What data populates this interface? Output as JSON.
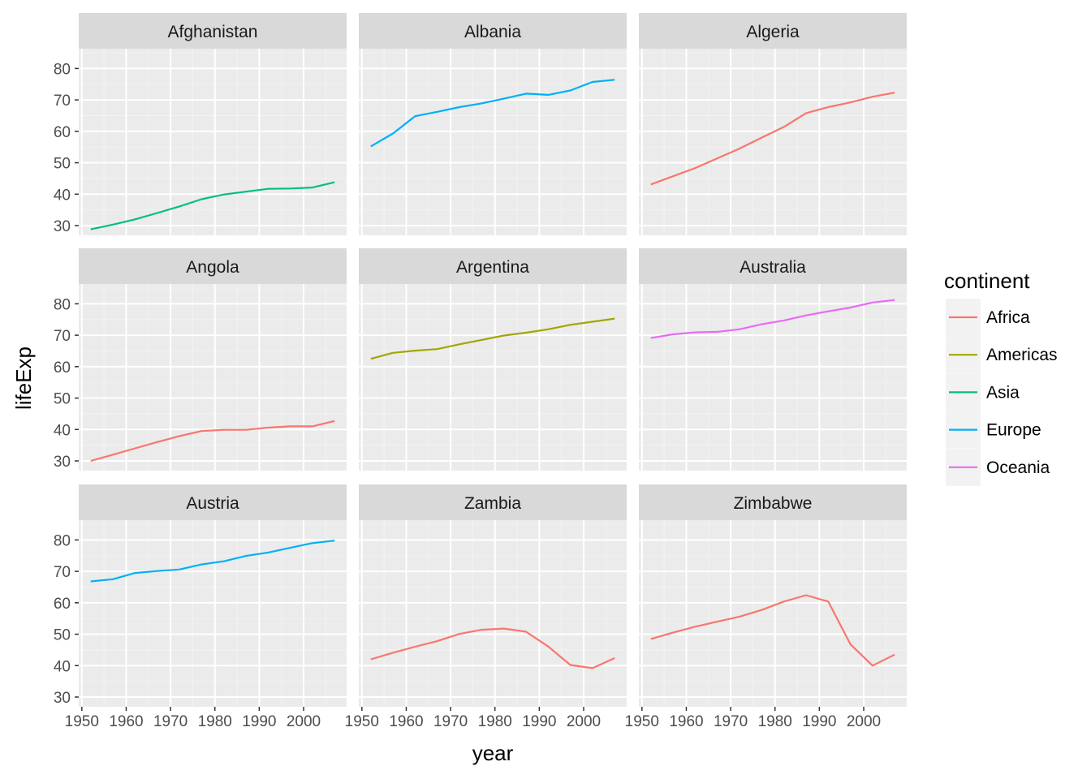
{
  "chart_data": {
    "type": "line",
    "xlabel": "year",
    "ylabel": "lifeExp",
    "xlim": [
      1949.3,
      2009.7
    ],
    "ylim": [
      26.9,
      86.3
    ],
    "x_ticks": [
      1950,
      1960,
      1970,
      1980,
      1990,
      2000
    ],
    "y_ticks": [
      30,
      40,
      50,
      60,
      70,
      80
    ],
    "x": [
      1952,
      1957,
      1962,
      1967,
      1972,
      1977,
      1982,
      1987,
      1992,
      1997,
      2002,
      2007
    ],
    "grid": true,
    "legend": {
      "title": "continent",
      "placement": "right",
      "entries": [
        {
          "name": "Africa",
          "color": "#F8766D"
        },
        {
          "name": "Americas",
          "color": "#A3A500"
        },
        {
          "name": "Asia",
          "color": "#00BF7D"
        },
        {
          "name": "Europe",
          "color": "#00B0F6"
        },
        {
          "name": "Oceania",
          "color": "#E76BF3"
        }
      ]
    },
    "series": [
      {
        "name": "Afghanistan",
        "continent": "Asia",
        "values": [
          28.8,
          30.3,
          32.0,
          34.0,
          36.1,
          38.4,
          39.9,
          40.8,
          41.7,
          41.8,
          42.1,
          43.8
        ]
      },
      {
        "name": "Albania",
        "continent": "Europe",
        "values": [
          55.2,
          59.3,
          64.8,
          66.2,
          67.7,
          68.9,
          70.4,
          72.0,
          71.6,
          73.0,
          75.7,
          76.4
        ]
      },
      {
        "name": "Algeria",
        "continent": "Africa",
        "values": [
          43.1,
          45.7,
          48.3,
          51.4,
          54.5,
          58.0,
          61.4,
          65.8,
          67.7,
          69.2,
          71.0,
          72.3
        ]
      },
      {
        "name": "Angola",
        "continent": "Africa",
        "values": [
          30.0,
          32.0,
          34.0,
          36.0,
          37.9,
          39.5,
          39.9,
          39.9,
          40.6,
          41.0,
          41.0,
          42.7
        ]
      },
      {
        "name": "Argentina",
        "continent": "Americas",
        "values": [
          62.5,
          64.4,
          65.1,
          65.6,
          67.1,
          68.5,
          69.9,
          70.8,
          71.9,
          73.3,
          74.3,
          75.3
        ]
      },
      {
        "name": "Australia",
        "continent": "Oceania",
        "values": [
          69.1,
          70.3,
          70.9,
          71.1,
          71.9,
          73.5,
          74.7,
          76.3,
          77.6,
          78.8,
          80.4,
          81.2
        ]
      },
      {
        "name": "Austria",
        "continent": "Europe",
        "values": [
          66.8,
          67.5,
          69.5,
          70.1,
          70.6,
          72.2,
          73.2,
          74.9,
          76.0,
          77.5,
          79.0,
          79.8
        ]
      },
      {
        "name": "Zambia",
        "continent": "Africa",
        "values": [
          42.0,
          44.1,
          46.0,
          47.8,
          50.1,
          51.4,
          51.8,
          50.8,
          46.1,
          40.2,
          39.2,
          42.4
        ]
      },
      {
        "name": "Zimbabwe",
        "continent": "Africa",
        "values": [
          48.5,
          50.5,
          52.4,
          54.0,
          55.6,
          57.7,
          60.4,
          62.4,
          60.4,
          46.8,
          40.0,
          43.5
        ]
      }
    ]
  }
}
